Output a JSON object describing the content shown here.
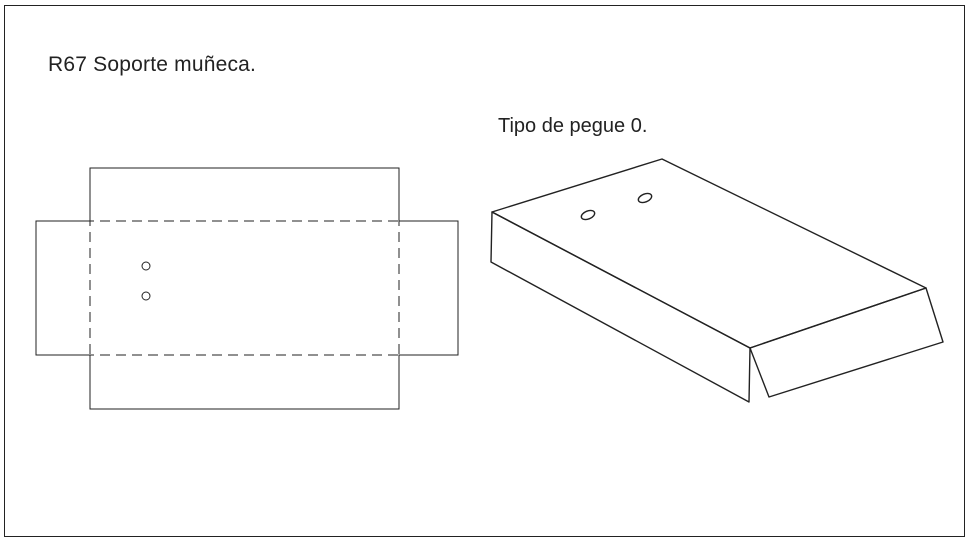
{
  "diagram": {
    "title": "R67 Soporte muñeca.",
    "subtitle": "Tipo de pegue 0."
  }
}
